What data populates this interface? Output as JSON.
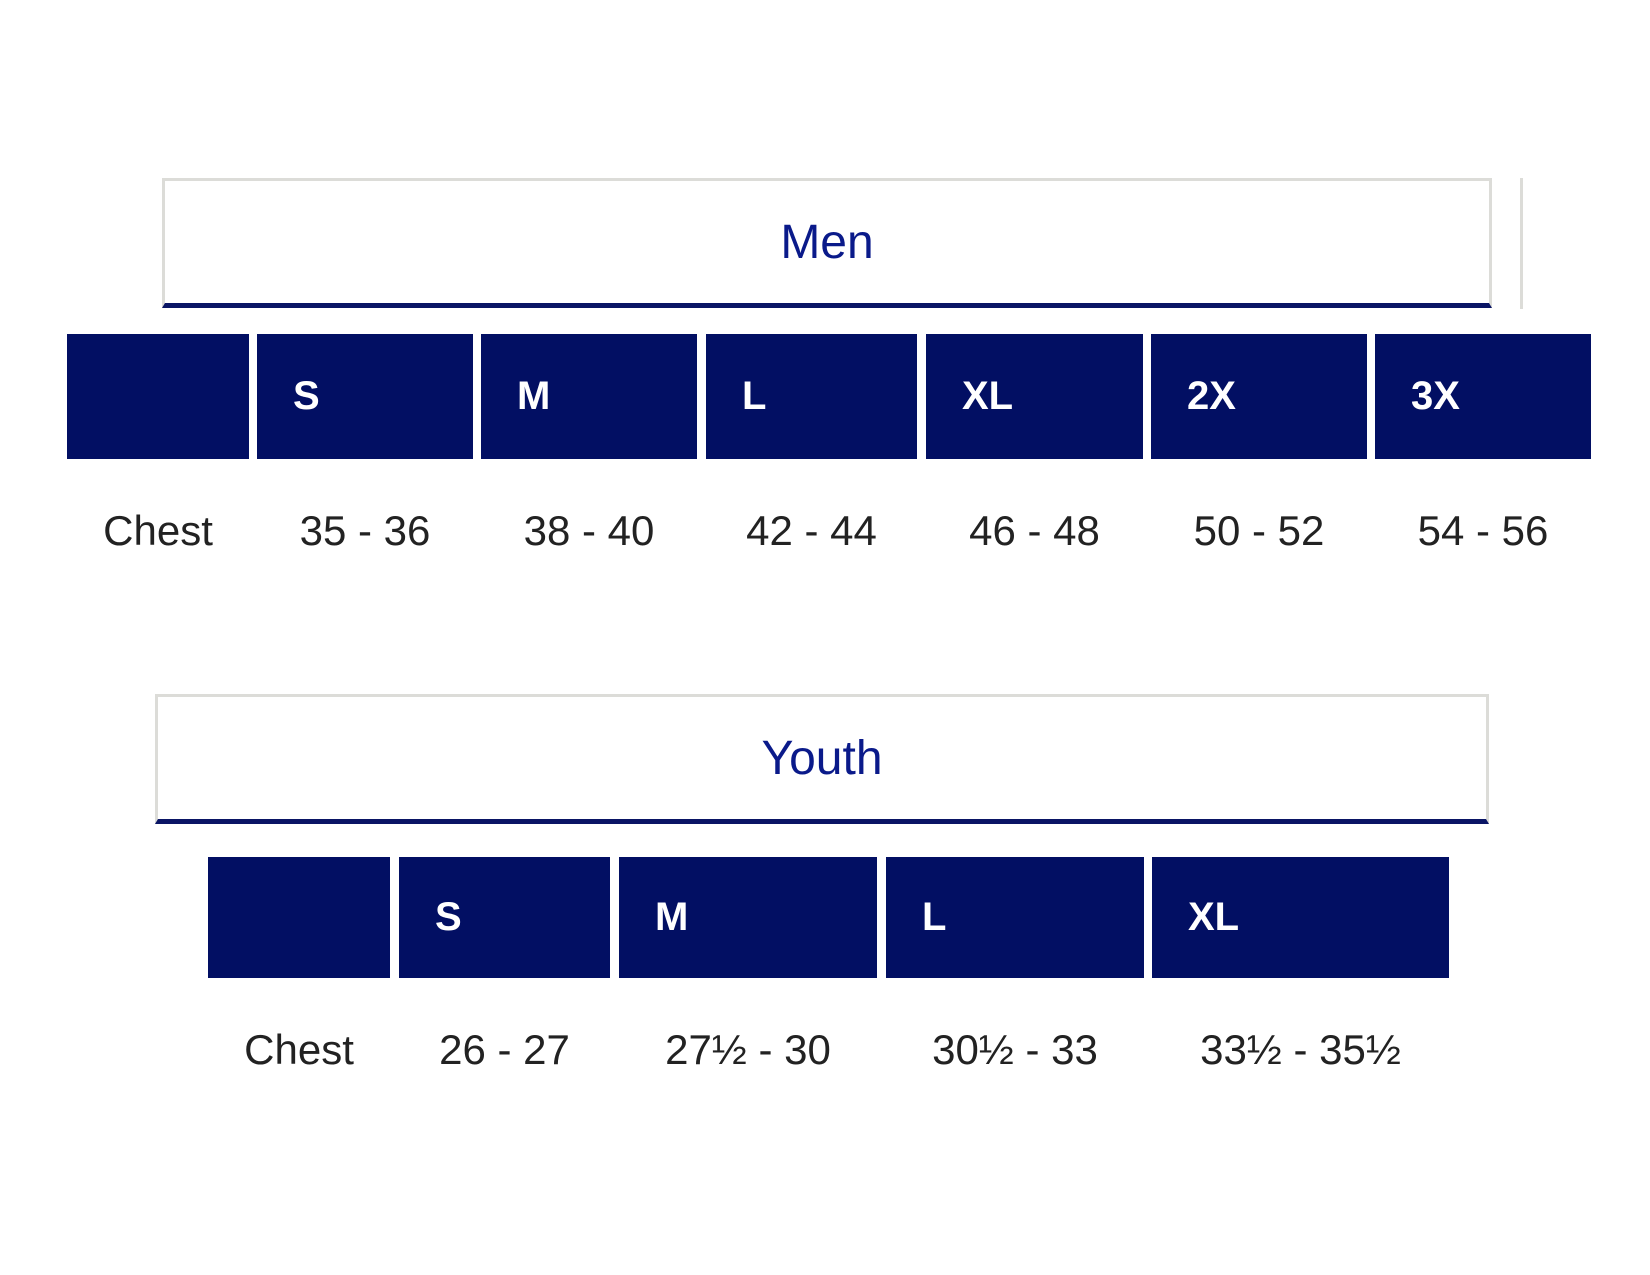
{
  "tables": [
    {
      "title": "Men",
      "sizes": [
        "S",
        "M",
        "L",
        "XL",
        "2X",
        "3X"
      ],
      "row_label": "Chest",
      "values": [
        "35 - 36",
        "38 - 40",
        "42 - 44",
        "46 - 48",
        "50 - 52",
        "54 - 56"
      ]
    },
    {
      "title": "Youth",
      "sizes": [
        "S",
        "M",
        "L",
        "XL"
      ],
      "row_label": "Chest",
      "values": [
        "26 - 27",
        "27½ - 30",
        "30½ - 33",
        "33½ - 35½"
      ]
    }
  ]
}
